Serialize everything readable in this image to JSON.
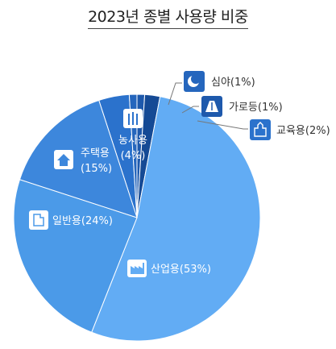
{
  "chart_data": {
    "type": "pie",
    "title": "2023년 종별 사용량 비중",
    "slices": [
      {
        "label": "산업용(53%)",
        "value": 53,
        "color": "#62acf4",
        "icon": "factory-icon"
      },
      {
        "label": "일반용(24%)",
        "value": 24,
        "color": "#4b9ae8",
        "icon": "building-icon"
      },
      {
        "label": "주택용",
        "pct": "(15%)",
        "value": 15,
        "color": "#3d87dc",
        "icon": "house-icon"
      },
      {
        "label": "농사용",
        "pct": "(4%)",
        "value": 4,
        "color": "#2b72cc",
        "icon": "wheat-icon"
      },
      {
        "label": "심야(1%)",
        "value": 1,
        "color": "#2566bd",
        "icon": "moon-icon"
      },
      {
        "label": "가로등(1%)",
        "value": 1,
        "color": "#1e59ac",
        "icon": "road-icon"
      },
      {
        "label": "교육용(2%)",
        "value": 2,
        "color": "#154a95",
        "icon": "school-icon"
      }
    ]
  }
}
